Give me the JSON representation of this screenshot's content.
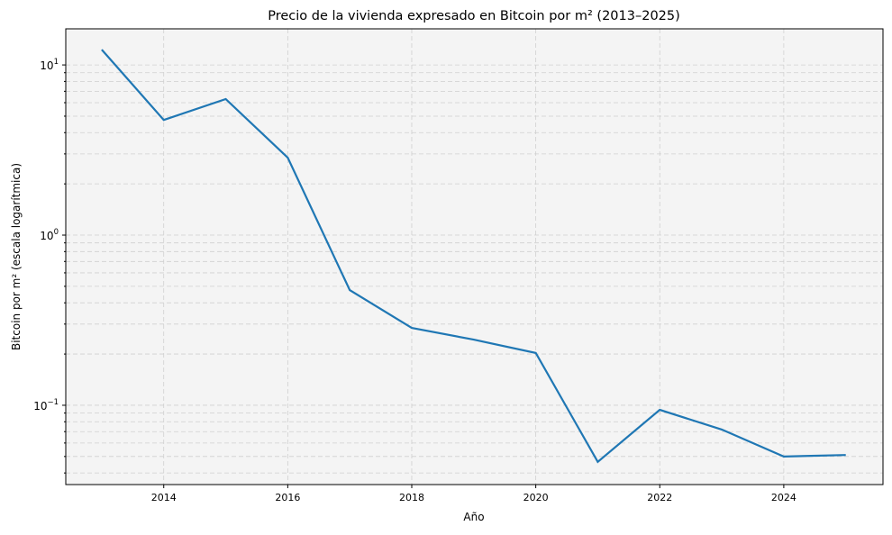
{
  "chart_data": {
    "type": "line",
    "title": "Precio de la vivienda expresado en Bitcoin por m² (2013–2025)",
    "xlabel": "Año",
    "ylabel": "Bitcoin por m² (escala logarítmica)",
    "yscale": "log",
    "grid": true,
    "x": [
      2013,
      2014,
      2015,
      2016,
      2017,
      2018,
      2019,
      2020,
      2021,
      2022,
      2023,
      2024,
      2025
    ],
    "series": [
      {
        "values": [
          12.3,
          4.75,
          6.3,
          2.85,
          0.475,
          0.285,
          0.243,
          0.203,
          0.0465,
          0.094,
          0.072,
          0.05,
          0.051
        ],
        "color": "#1f77b4"
      }
    ],
    "xlim": [
      2012.42,
      2025.6
    ],
    "ylim": [
      0.0342,
      16.3
    ],
    "xticks": [
      "2014",
      "2016",
      "2018",
      "2020",
      "2022",
      "2024"
    ],
    "yticks": [
      {
        "base": "10",
        "exp": "−1"
      },
      {
        "base": "10",
        "exp": "0"
      },
      {
        "base": "10",
        "exp": "1"
      }
    ],
    "background": "#f4f4f4"
  }
}
